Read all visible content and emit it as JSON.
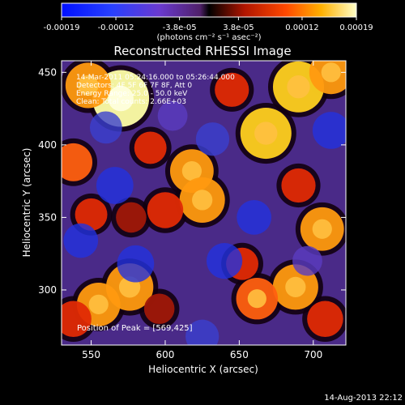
{
  "chart_data": {
    "type": "heatmap",
    "title": "Reconstructed RHESSI Image",
    "xlabel": "Heliocentric X (arcsec)",
    "ylabel": "Heliocentric Y (arcsec)",
    "xlim": [
      530,
      722
    ],
    "ylim": [
      262,
      458
    ],
    "x_ticks": [
      550,
      600,
      650,
      700
    ],
    "y_ticks": [
      300,
      350,
      400,
      450
    ],
    "colorbar": {
      "ticks": [
        "-0.00019",
        "-0.00012",
        "-3.8e-05",
        "3.8e-05",
        "0.00012",
        "0.00019"
      ],
      "tick_values": [
        -0.00019,
        -0.00012,
        -3.8e-05,
        3.8e-05,
        0.00012,
        0.00019
      ],
      "range": [
        -0.00019,
        0.00019
      ],
      "units": "(photons cm⁻² s⁻¹ asec⁻²)"
    },
    "annotations": [
      "14-Mar-2011 05:24:16.000 to 05:26:44.000",
      "Detectors: 4F 5F 6F 7F 8F, Att 0",
      "Energy Range: 25.0 - 50.0 keV",
      "Clean: Total counts: 2.66E+03"
    ],
    "peak_label": "Position of Peak = [569,425]",
    "sources": [
      {
        "x": 570,
        "y": 432,
        "value": 0.00019
      },
      {
        "x": 548,
        "y": 441,
        "value": 0.00013
      },
      {
        "x": 538,
        "y": 388,
        "value": 9e-05
      },
      {
        "x": 590,
        "y": 398,
        "value": 6e-05
      },
      {
        "x": 618,
        "y": 382,
        "value": 0.00012
      },
      {
        "x": 625,
        "y": 362,
        "value": 0.00013
      },
      {
        "x": 600,
        "y": 355,
        "value": 8e-05
      },
      {
        "x": 577,
        "y": 350,
        "value": 5e-05
      },
      {
        "x": 550,
        "y": 352,
        "value": 6e-05
      },
      {
        "x": 576,
        "y": 302,
        "value": 0.00014
      },
      {
        "x": 555,
        "y": 290,
        "value": 0.00012
      },
      {
        "x": 538,
        "y": 280,
        "value": 8e-05
      },
      {
        "x": 596,
        "y": 287,
        "value": 5e-05
      },
      {
        "x": 668,
        "y": 408,
        "value": 0.00016
      },
      {
        "x": 690,
        "y": 440,
        "value": 0.00016
      },
      {
        "x": 712,
        "y": 450,
        "value": 0.00012
      },
      {
        "x": 645,
        "y": 438,
        "value": 7e-05
      },
      {
        "x": 690,
        "y": 372,
        "value": 7e-05
      },
      {
        "x": 706,
        "y": 342,
        "value": 0.00012
      },
      {
        "x": 688,
        "y": 302,
        "value": 0.00013
      },
      {
        "x": 662,
        "y": 294,
        "value": 0.00011
      },
      {
        "x": 652,
        "y": 318,
        "value": 6e-05
      },
      {
        "x": 708,
        "y": 280,
        "value": 8e-05
      },
      {
        "x": 566,
        "y": 372,
        "value": -0.00012
      },
      {
        "x": 580,
        "y": 318,
        "value": -0.00012
      },
      {
        "x": 543,
        "y": 334,
        "value": -0.0001
      },
      {
        "x": 640,
        "y": 320,
        "value": -0.00011
      },
      {
        "x": 660,
        "y": 350,
        "value": -0.0001
      },
      {
        "x": 712,
        "y": 410,
        "value": -0.00012
      },
      {
        "x": 605,
        "y": 420,
        "value": -6e-05
      },
      {
        "x": 632,
        "y": 404,
        "value": -9e-05
      },
      {
        "x": 625,
        "y": 268,
        "value": -9e-05
      },
      {
        "x": 560,
        "y": 412,
        "value": -8e-05
      },
      {
        "x": 696,
        "y": 320,
        "value": -6e-05
      }
    ]
  },
  "footer": {
    "timestamp": "14-Aug-2013 22:12"
  }
}
